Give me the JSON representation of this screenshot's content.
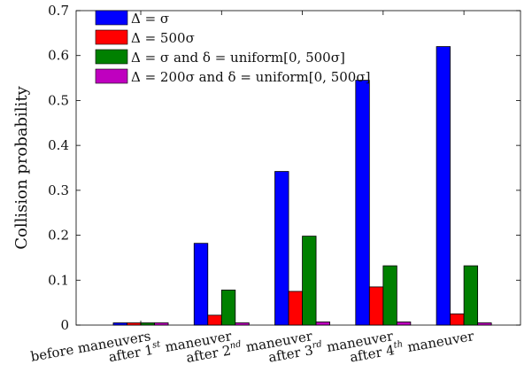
{
  "chart_data": {
    "type": "bar",
    "title": "",
    "xlabel": "",
    "ylabel": "Collision probability",
    "ylim": [
      0,
      0.7
    ],
    "yticks": [
      0,
      0.1,
      0.2,
      0.3,
      0.4,
      0.5,
      0.6,
      0.7
    ],
    "ytick_labels": [
      "0",
      "0.1",
      "0.2",
      "0.3",
      "0.4",
      "0.5",
      "0.6",
      "0.7"
    ],
    "grid": false,
    "legend_position": "top-left",
    "categories": [
      {
        "base": "before maneuvers",
        "sup": "",
        "tail": ""
      },
      {
        "base": "after 1",
        "sup": "st",
        "tail": " maneuver"
      },
      {
        "base": "after 2",
        "sup": "nd",
        "tail": " maneuver"
      },
      {
        "base": "after 3",
        "sup": "rd",
        "tail": " maneuver"
      },
      {
        "base": "after 4",
        "sup": "th",
        "tail": " maneuver"
      }
    ],
    "series": [
      {
        "name": "Δ = σ",
        "color": "#0000ff",
        "values": [
          0.005,
          0.182,
          0.342,
          0.545,
          0.62
        ]
      },
      {
        "name": "Δ = 500σ",
        "color": "#ff0000",
        "values": [
          0.005,
          0.022,
          0.075,
          0.085,
          0.025
        ]
      },
      {
        "name": "Δ = σ and δ = uniform[0, 500σ]",
        "color": "#008000",
        "values": [
          0.005,
          0.078,
          0.198,
          0.132,
          0.132
        ]
      },
      {
        "name": "Δ = 200σ and δ = uniform[0, 500σ]",
        "color": "#bf00bf",
        "values": [
          0.005,
          0.005,
          0.007,
          0.007,
          0.005
        ]
      }
    ]
  }
}
